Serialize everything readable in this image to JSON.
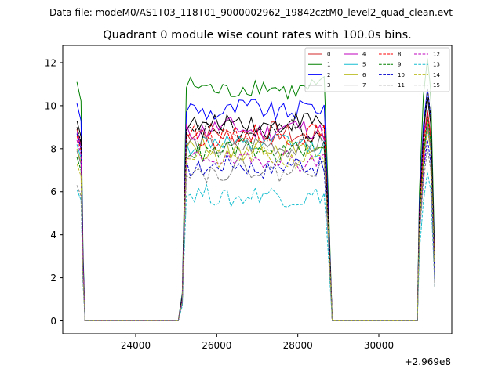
{
  "chart_data": {
    "type": "line",
    "suptitle": "Data file: modeM0/AS1T03_118T01_9000002962_19842cztM0_level2_quad_clean.evt",
    "title": "Quadrant 0 module wise count rates with 100.0s bins.",
    "xlabel": "",
    "ylabel": "",
    "x_offset_label": "+2.969e8",
    "xlim": [
      22200,
      31800
    ],
    "ylim": [
      -0.6,
      12.8
    ],
    "xticks": [
      24000,
      26000,
      28000,
      30000
    ],
    "xtick_labels": [
      "24000",
      "26000",
      "28000",
      "30000"
    ],
    "yticks": [
      0,
      2,
      4,
      6,
      8,
      10,
      12
    ],
    "ytick_labels": [
      "0",
      "2",
      "4",
      "6",
      "8",
      "10",
      "12"
    ],
    "grid": false,
    "legend_position": "top-right",
    "legend_columns": 4,
    "segments": [
      {
        "x_start": 22550,
        "count": 3
      },
      {
        "x_start": 22750,
        "count": 24,
        "gap": true
      },
      {
        "x_start": 25050,
        "count": 38
      },
      {
        "x_start": 28850,
        "count": 22,
        "gap": true
      },
      {
        "x_start": 30950,
        "count": 5
      }
    ],
    "series": [
      {
        "name": "0",
        "color": "#d62728",
        "dash": false,
        "start": 8.9,
        "mean": 8.7,
        "end_peak": 9.8,
        "final": 2.5
      },
      {
        "name": "1",
        "color": "#008000",
        "dash": false,
        "start": 11.1,
        "mean": 10.8,
        "end_peak": 12.2,
        "final": 2.8
      },
      {
        "name": "2",
        "color": "#0000ff",
        "dash": false,
        "start": 10.1,
        "mean": 9.8,
        "end_peak": 10.8,
        "final": 2.6
      },
      {
        "name": "3",
        "color": "#000000",
        "dash": false,
        "start": 9.3,
        "mean": 9.2,
        "end_peak": 10.4,
        "final": 2.4
      },
      {
        "name": "4",
        "color": "#bf00bf",
        "dash": false,
        "start": 8.8,
        "mean": 8.9,
        "end_peak": 9.6,
        "final": 2.3
      },
      {
        "name": "5",
        "color": "#17becf",
        "dash": false,
        "start": 8.2,
        "mean": 8.2,
        "end_peak": 9.0,
        "final": 2.2
      },
      {
        "name": "6",
        "color": "#bcbd22",
        "dash": false,
        "start": 8.0,
        "mean": 8.0,
        "end_peak": 9.4,
        "final": 2.2
      },
      {
        "name": "7",
        "color": "#7f7f7f",
        "dash": false,
        "start": 7.9,
        "mean": 8.1,
        "end_peak": 9.2,
        "final": 2.1
      },
      {
        "name": "8",
        "color": "#ff0000",
        "dash": true,
        "start": 8.6,
        "mean": 8.6,
        "end_peak": 9.7,
        "final": 2.4
      },
      {
        "name": "9",
        "color": "#008000",
        "dash": true,
        "start": 7.6,
        "mean": 7.9,
        "end_peak": 9.5,
        "final": 2.0
      },
      {
        "name": "10",
        "color": "#0000cd",
        "dash": true,
        "start": 8.7,
        "mean": 7.2,
        "end_peak": 8.4,
        "final": 1.8
      },
      {
        "name": "11",
        "color": "#000000",
        "dash": true,
        "start": 9.0,
        "mean": 8.8,
        "end_peak": 10.8,
        "final": 2.3
      },
      {
        "name": "12",
        "color": "#bf00bf",
        "dash": true,
        "start": 8.4,
        "mean": 7.5,
        "end_peak": 9.0,
        "final": 2.0
      },
      {
        "name": "13",
        "color": "#17becf",
        "dash": true,
        "start": 6.1,
        "mean": 5.8,
        "end_peak": 6.9,
        "final": 1.6
      },
      {
        "name": "14",
        "color": "#bcbd22",
        "dash": true,
        "start": 7.3,
        "mean": 7.6,
        "end_peak": 8.9,
        "final": 2.0
      },
      {
        "name": "15",
        "color": "#7f7f7f",
        "dash": true,
        "start": 6.3,
        "mean": 7.0,
        "end_peak": 8.0,
        "final": 1.5
      }
    ]
  }
}
